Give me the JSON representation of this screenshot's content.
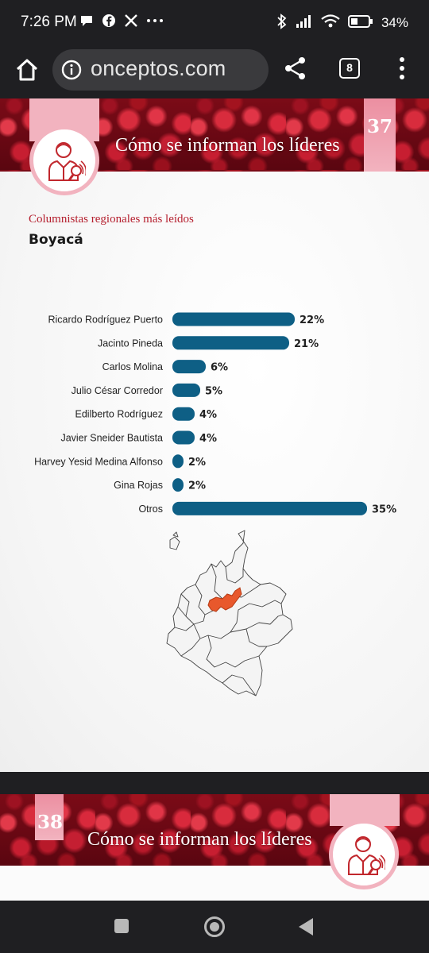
{
  "status_bar": {
    "time": "7:26 PM",
    "left_icons": [
      "chat-bubble-icon",
      "facebook-icon",
      "x-icon",
      "more-dots-icon"
    ],
    "right_icons": [
      "bluetooth-icon",
      "signal-icon",
      "wifi-icon",
      "battery-icon"
    ],
    "battery": "34%"
  },
  "browser": {
    "url": "onceptos.com",
    "tab_count": "8",
    "icons": [
      "home-icon",
      "info-icon",
      "share-icon",
      "tabs-icon",
      "menu-icon"
    ]
  },
  "page_37": {
    "page_number": "37",
    "section_title": "Cómo se informan los líderes",
    "subtitle": "Columnistas regionales más leídos",
    "region": "Boyacá",
    "accent_color": "#b5202f",
    "bar_color": "#0e5f85",
    "highlight_region_color": "#e8582c"
  },
  "page_38": {
    "page_number": "38",
    "section_title": "Cómo se informan los líderes"
  },
  "chart_data": {
    "type": "bar",
    "orientation": "horizontal",
    "categories": [
      "Ricardo Rodríguez Puerto",
      "Jacinto Pineda",
      "Carlos Molina",
      "Julio César Corredor",
      "Edilberto Rodríguez",
      "Javier Sneider Bautista",
      "Harvey Yesid Medina Alfonso",
      "Gina Rojas",
      "Otros"
    ],
    "values": [
      22,
      21,
      6,
      5,
      4,
      4,
      2,
      2,
      35
    ],
    "labels": [
      "22%",
      "21%",
      "6%",
      "5%",
      "4%",
      "4%",
      "2%",
      "2%",
      "35%"
    ],
    "unit": "%",
    "title": "Columnistas regionales más leídos",
    "subtitle": "Boyacá",
    "xlim": [
      0,
      35
    ],
    "grid": false,
    "legend": "none"
  }
}
